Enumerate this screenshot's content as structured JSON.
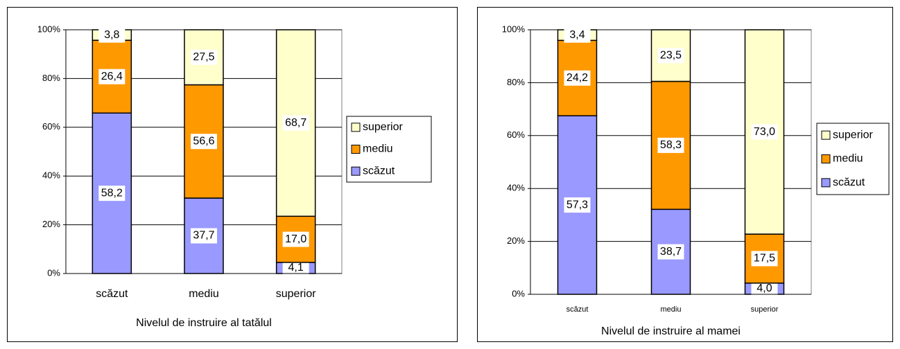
{
  "chart_data": [
    {
      "type": "stacked_percent_bar",
      "x_label": "Nivelul de instruire al tatălul",
      "categories": [
        "scăzut",
        "mediu",
        "superior"
      ],
      "ylim": [
        0,
        100
      ],
      "yticks": [
        {
          "value": 0,
          "label": "0%"
        },
        {
          "value": 20,
          "label": "20%"
        },
        {
          "value": 40,
          "label": "40%"
        },
        {
          "value": 60,
          "label": "60%"
        },
        {
          "value": 80,
          "label": "80%"
        },
        {
          "value": 100,
          "label": "100%"
        }
      ],
      "grid": true,
      "legend": "right",
      "series": [
        {
          "name": "scăzut",
          "color": "#9999ff",
          "values": [
            58.2,
            37.7,
            4.1
          ],
          "value_labels": [
            "58,2",
            "37,7",
            "4,1"
          ]
        },
        {
          "name": "mediu",
          "color": "#ff9900",
          "values": [
            26.4,
            56.6,
            17.0
          ],
          "value_labels": [
            "26,4",
            "56,6",
            "17,0"
          ]
        },
        {
          "name": "superior",
          "color": "#ffffcc",
          "values": [
            3.8,
            27.5,
            68.7
          ],
          "value_labels": [
            "3,8",
            "27,5",
            "68,7"
          ]
        }
      ]
    },
    {
      "type": "stacked_percent_bar",
      "x_label": "Nivelul de instruire al mamei",
      "categories": [
        "scăzut",
        "mediu",
        "superior"
      ],
      "ylim": [
        0,
        100
      ],
      "yticks": [
        {
          "value": 0,
          "label": "0%"
        },
        {
          "value": 20,
          "label": "20%"
        },
        {
          "value": 40,
          "label": "40%"
        },
        {
          "value": 60,
          "label": "60%"
        },
        {
          "value": 80,
          "label": "80%"
        },
        {
          "value": 100,
          "label": "100%"
        }
      ],
      "grid": true,
      "legend": "right",
      "series": [
        {
          "name": "scăzut",
          "color": "#9999ff",
          "values": [
            57.3,
            38.7,
            4.0
          ],
          "value_labels": [
            "57,3",
            "38,7",
            "4,0"
          ]
        },
        {
          "name": "mediu",
          "color": "#ff9900",
          "values": [
            24.2,
            58.3,
            17.5
          ],
          "value_labels": [
            "24,2",
            "58,3",
            "17,5"
          ]
        },
        {
          "name": "superior",
          "color": "#ffffcc",
          "values": [
            3.4,
            23.5,
            73.0
          ],
          "value_labels": [
            "3,4",
            "23,5",
            "73,0"
          ]
        }
      ]
    }
  ]
}
